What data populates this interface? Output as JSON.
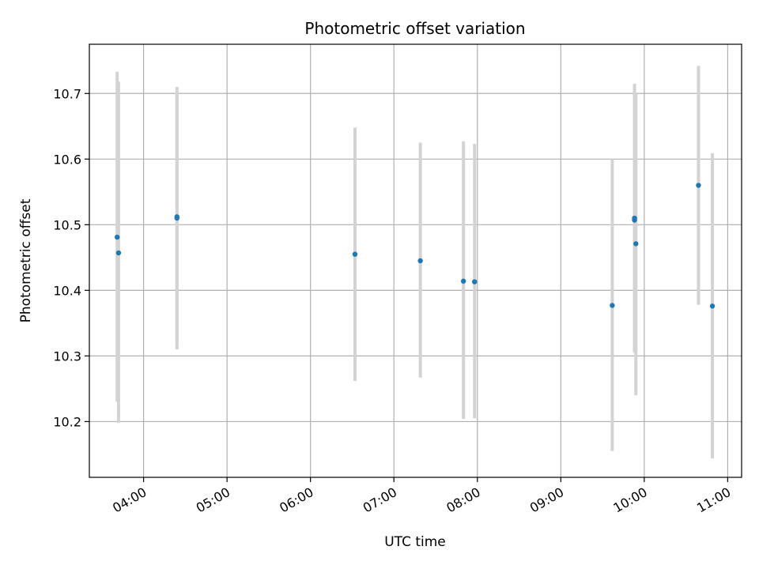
{
  "chart_data": {
    "type": "scatter",
    "title": "Photometric offset variation",
    "xlabel": "UTC time",
    "ylabel": "Photometric offset",
    "x_unit": "UTC time (HH:MM)",
    "xlim": [
      "03:21",
      "11:10"
    ],
    "ylim": [
      10.115,
      10.775
    ],
    "x_ticks": [
      "04:00",
      "05:00",
      "06:00",
      "07:00",
      "08:00",
      "09:00",
      "10:00",
      "11:00"
    ],
    "y_ticks": [
      10.2,
      10.3,
      10.4,
      10.5,
      10.6,
      10.7
    ],
    "grid": true,
    "marker_color": "#1f77b4",
    "errorbar_color": "#d3d3d3",
    "points": [
      {
        "t": "03:41",
        "y": 10.481,
        "ylo": 10.23,
        "yhi": 10.733
      },
      {
        "t": "03:42",
        "y": 10.457,
        "ylo": 10.198,
        "yhi": 10.718
      },
      {
        "t": "04:24",
        "y": 10.512,
        "ylo": 10.31,
        "yhi": 10.71
      },
      {
        "t": "04:24",
        "y": 10.51,
        "ylo": 10.32,
        "yhi": 10.7
      },
      {
        "t": "06:32",
        "y": 10.455,
        "ylo": 10.262,
        "yhi": 10.648
      },
      {
        "t": "07:19",
        "y": 10.445,
        "ylo": 10.267,
        "yhi": 10.625
      },
      {
        "t": "07:50",
        "y": 10.414,
        "ylo": 10.204,
        "yhi": 10.627
      },
      {
        "t": "07:58",
        "y": 10.413,
        "ylo": 10.205,
        "yhi": 10.623
      },
      {
        "t": "09:37",
        "y": 10.377,
        "ylo": 10.155,
        "yhi": 10.6
      },
      {
        "t": "09:53",
        "y": 10.51,
        "ylo": 10.305,
        "yhi": 10.715
      },
      {
        "t": "09:53",
        "y": 10.507,
        "ylo": 10.31,
        "yhi": 10.703
      },
      {
        "t": "09:54",
        "y": 10.471,
        "ylo": 10.24,
        "yhi": 10.7
      },
      {
        "t": "10:39",
        "y": 10.56,
        "ylo": 10.378,
        "yhi": 10.742
      },
      {
        "t": "10:49",
        "y": 10.376,
        "ylo": 10.144,
        "yhi": 10.609
      }
    ]
  }
}
